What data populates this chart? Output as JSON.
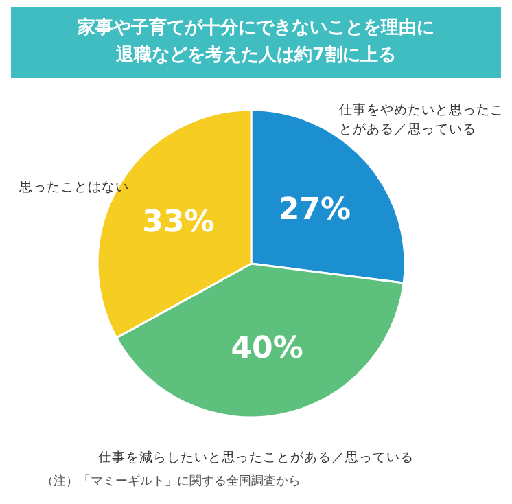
{
  "chart_data": {
    "type": "pie",
    "title": "家事や子育てが十分にできないことを理由に退職などを考えた人は約7割に上る",
    "categories": [
      "仕事をやめたいと思ったことがある／思っている",
      "仕事を減らしたいと思ったことがある／思っている",
      "思ったことはない"
    ],
    "values": [
      27,
      40,
      33
    ],
    "colors": [
      "#1c8fd0",
      "#5dc07c",
      "#f6cd22"
    ],
    "value_labels": [
      "27%",
      "40%",
      "33%"
    ],
    "annotations": [
      "（注）「マミーギルト」に関する全国調査から"
    ]
  }
}
